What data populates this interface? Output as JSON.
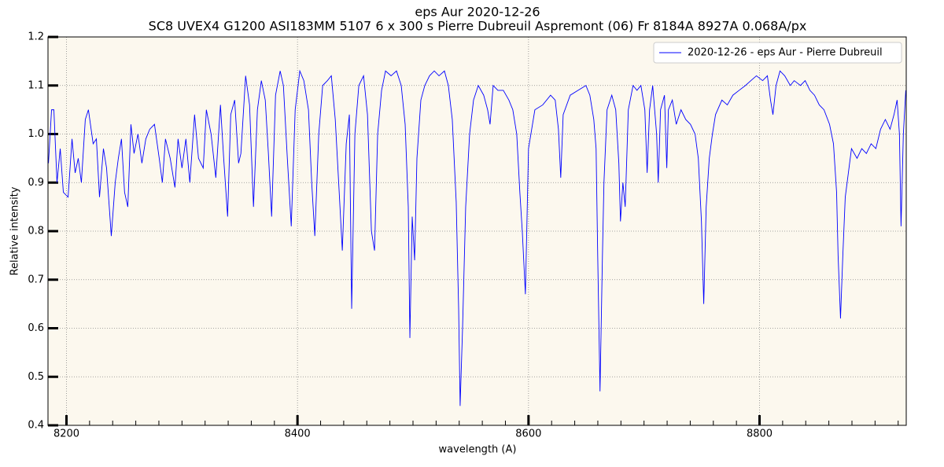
{
  "chart_data": {
    "type": "line",
    "title": "eps Aur 2020-12-26",
    "subtitle": "SC8 UVEX4 G1200 ASI183MM 5107 6 x 300 s Pierre Dubreuil Aspremont (06) Fr 8184A 8927A 0.068A/px",
    "xlabel": "wavelength (A)",
    "ylabel": "Relative intensity",
    "xlim": [
      8184,
      8927
    ],
    "ylim": [
      0.4,
      1.2
    ],
    "xticks": [
      8200,
      8400,
      8600,
      8800
    ],
    "xminorticks": [
      8200,
      8220,
      8240,
      8260,
      8280,
      8300,
      8320,
      8340,
      8360,
      8380,
      8400,
      8420,
      8440,
      8460,
      8480,
      8500,
      8520,
      8540,
      8560,
      8580,
      8600,
      8620,
      8640,
      8660,
      8680,
      8700,
      8720,
      8740,
      8760,
      8780,
      8800,
      8820,
      8840,
      8860,
      8880,
      8900,
      8920
    ],
    "yticks": [
      0.4,
      0.5,
      0.6,
      0.7,
      0.8,
      0.9,
      {
        "value": 1.0,
        "label": "1.0"
      },
      1.1,
      1.2
    ],
    "grid": true,
    "legend": "upper right",
    "background": "#fcf8ee",
    "x": [
      8184.4,
      8187.1,
      8189.1,
      8191.8,
      8194.6,
      8197.3,
      8201.4,
      8204.8,
      8207.5,
      8210.2,
      8212.9,
      8216.3,
      8219.0,
      8223.1,
      8225.9,
      8228.6,
      8232.0,
      8234.7,
      8238.8,
      8242.2,
      8244.9,
      8247.6,
      8250.3,
      8253.1,
      8255.8,
      8258.5,
      8261.9,
      8265.3,
      8268.7,
      8272.1,
      8276.2,
      8280.3,
      8283.0,
      8285.7,
      8289.8,
      8293.9,
      8296.6,
      8300.0,
      8303.4,
      8306.8,
      8310.9,
      8314.3,
      8318.4,
      8321.1,
      8325.2,
      8329.3,
      8333.3,
      8336.1,
      8339.5,
      8342.2,
      8345.6,
      8349.0,
      8351.0,
      8355.1,
      8358.5,
      8361.9,
      8365.3,
      8368.7,
      8372.1,
      8374.8,
      8377.6,
      8381.0,
      8385.0,
      8387.8,
      8391.2,
      8394.6,
      8398.0,
      8402.0,
      8405.5,
      8409.5,
      8412.3,
      8415.0,
      8418.4,
      8421.8,
      8425.9,
      8429.3,
      8432.7,
      8436.1,
      8438.8,
      8442.2,
      8444.9,
      8446.9,
      8449.7,
      8453.1,
      8457.2,
      8460.6,
      8464.0,
      8466.7,
      8469.4,
      8472.8,
      8476.2,
      8481.0,
      8485.7,
      8489.8,
      8493.2,
      8495.9,
      8497.3,
      8499.3,
      8501.4,
      8503.4,
      8506.8,
      8510.2,
      8514.3,
      8518.4,
      8522.5,
      8527.2,
      8530.6,
      8534.0,
      8537.4,
      8539.5,
      8540.8,
      8542.9,
      8545.6,
      8549.0,
      8552.4,
      8556.5,
      8561.2,
      8564.6,
      8566.7,
      8569.4,
      8573.5,
      8578.2,
      8583.0,
      8586.4,
      8589.8,
      8592.5,
      8594.6,
      8597.3,
      8600.0,
      8605.5,
      8612.3,
      8619.1,
      8623.1,
      8625.9,
      8627.9,
      8630.0,
      8636.1,
      8642.9,
      8649.7,
      8653.1,
      8656.5,
      8658.5,
      8659.9,
      8661.9,
      8664.0,
      8665.3,
      8668.0,
      8672.1,
      8675.5,
      8678.2,
      8679.6,
      8681.7,
      8683.7,
      8686.4,
      8690.5,
      8693.9,
      8697.3,
      8700.7,
      8702.7,
      8704.8,
      8707.5,
      8710.9,
      8712.3,
      8714.3,
      8717.7,
      8719.7,
      8721.1,
      8724.5,
      8727.9,
      8732.0,
      8736.1,
      8740.2,
      8744.2,
      8747.0,
      8749.7,
      8751.7,
      8753.8,
      8756.5,
      8759.2,
      8761.9,
      8767.4,
      8772.1,
      8776.9,
      8782.3,
      8787.8,
      8792.5,
      8797.3,
      8802.7,
      8806.8,
      8809.5,
      8811.6,
      8814.3,
      8817.7,
      8821.8,
      8826.6,
      8830.0,
      8835.4,
      8839.5,
      8843.6,
      8847.6,
      8851.7,
      8855.8,
      8860.6,
      8864.0,
      8866.7,
      8868.0,
      8870.1,
      8872.1,
      8874.2,
      8876.9,
      8879.6,
      8884.4,
      8888.5,
      8892.5,
      8896.6,
      8900.7,
      8904.8,
      8908.9,
      8913.0,
      8916.4,
      8919.1,
      8921.1,
      8922.5,
      8924.5,
      8926.6
    ],
    "series": [
      {
        "name": "2020-12-26 - eps Aur - Pierre Dubreuil",
        "color": "#0000ff",
        "values": [
          0.94,
          1.05,
          1.05,
          0.9,
          0.97,
          0.88,
          0.87,
          0.99,
          0.92,
          0.95,
          0.9,
          1.03,
          1.05,
          0.98,
          0.99,
          0.87,
          0.97,
          0.93,
          0.79,
          0.9,
          0.95,
          0.99,
          0.88,
          0.85,
          1.02,
          0.96,
          1.0,
          0.94,
          0.99,
          1.01,
          1.02,
          0.95,
          0.9,
          0.99,
          0.95,
          0.89,
          0.99,
          0.93,
          0.99,
          0.9,
          1.04,
          0.95,
          0.93,
          1.05,
          1.0,
          0.91,
          1.06,
          0.95,
          0.83,
          1.04,
          1.07,
          0.94,
          0.96,
          1.12,
          1.06,
          0.85,
          1.05,
          1.11,
          1.07,
          0.96,
          0.83,
          1.08,
          1.13,
          1.1,
          0.95,
          0.81,
          1.05,
          1.13,
          1.11,
          1.05,
          0.9,
          0.79,
          1.0,
          1.1,
          1.11,
          1.12,
          1.03,
          0.88,
          0.76,
          0.98,
          1.04,
          0.64,
          1.0,
          1.1,
          1.12,
          1.04,
          0.8,
          0.76,
          1.0,
          1.09,
          1.13,
          1.12,
          1.13,
          1.1,
          1.02,
          0.85,
          0.58,
          0.83,
          0.74,
          0.95,
          1.07,
          1.1,
          1.12,
          1.13,
          1.12,
          1.13,
          1.1,
          1.03,
          0.86,
          0.64,
          0.44,
          0.6,
          0.85,
          1.0,
          1.07,
          1.1,
          1.08,
          1.05,
          1.02,
          1.1,
          1.09,
          1.09,
          1.07,
          1.05,
          1.0,
          0.88,
          0.8,
          0.67,
          0.97,
          1.05,
          1.06,
          1.08,
          1.07,
          1.01,
          0.91,
          1.04,
          1.08,
          1.09,
          1.1,
          1.08,
          1.03,
          0.97,
          0.75,
          0.47,
          0.75,
          0.9,
          1.05,
          1.08,
          1.05,
          0.94,
          0.82,
          0.9,
          0.85,
          1.05,
          1.1,
          1.09,
          1.1,
          1.05,
          0.92,
          1.05,
          1.1,
          1.0,
          0.9,
          1.05,
          1.08,
          0.93,
          1.05,
          1.07,
          1.02,
          1.05,
          1.03,
          1.02,
          1.0,
          0.95,
          0.82,
          0.65,
          0.85,
          0.95,
          1.0,
          1.04,
          1.07,
          1.06,
          1.08,
          1.09,
          1.1,
          1.11,
          1.12,
          1.11,
          1.12,
          1.07,
          1.04,
          1.1,
          1.13,
          1.12,
          1.1,
          1.11,
          1.1,
          1.11,
          1.09,
          1.08,
          1.06,
          1.05,
          1.02,
          0.98,
          0.88,
          0.75,
          0.62,
          0.75,
          0.87,
          0.92,
          0.97,
          0.95,
          0.97,
          0.96,
          0.98,
          0.97,
          1.01,
          1.03,
          1.01,
          1.04,
          1.07,
          1.0,
          0.81,
          1.0,
          1.09
        ]
      }
    ]
  }
}
